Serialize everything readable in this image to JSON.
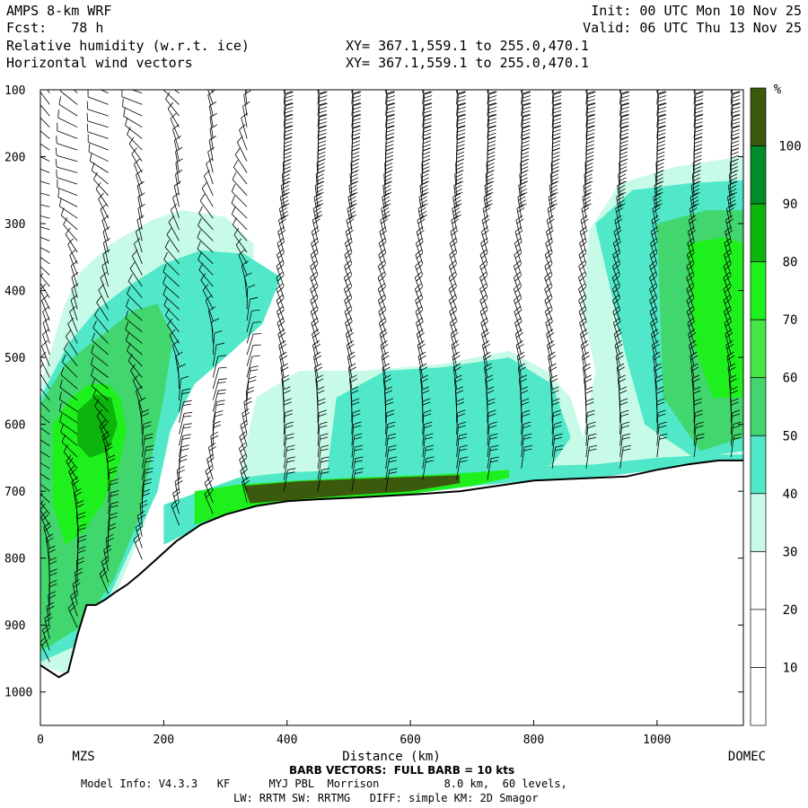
{
  "header": {
    "model": "AMPS 8-km WRF",
    "forecast": "Fcst:   78 h",
    "field1": "Relative humidity (w.r.t. ice)",
    "field2": "Horizontal wind vectors",
    "init": "Init: 00 UTC Mon 10 Nov 25",
    "valid": "Valid: 06 UTC Thu 13 Nov 25",
    "xy1": "XY= 367.1,559.1 to 255.0,470.1",
    "xy2": "XY= 367.1,559.1 to 255.0,470.1"
  },
  "footer": {
    "barb_note": "BARB VECTORS:  FULL BARB = 10 kts",
    "model_info": "Model Info: V4.3.3   KF      MYJ PBL  Morrison          8.0 km,  60 levels,",
    "physics": "LW: RRTM SW: RRTMG   DIFF: simple KM: 2D Smagor"
  },
  "colors": {
    "rh_30_40": "#c8fae8",
    "rh_40_50": "#50e8c8",
    "rh_50_60": "#42d66e",
    "rh_60_70": "#46e646",
    "rh_70_80": "#1ef01e",
    "rh_80_90": "#0cb40c",
    "rh_90_100": "#008c28",
    "rh_100_plus": "#3c5a0e",
    "terrain_band": "#7a3c12"
  },
  "chart_data": {
    "type": "heatmap",
    "title": "Relative humidity (w.r.t. ice)",
    "xlabel": "Distance (km)",
    "ylabel": "",
    "x_range": [
      0,
      1140
    ],
    "y_range_hpa": [
      100,
      1050
    ],
    "y_inverted": true,
    "x_ticks": [
      0,
      200,
      400,
      600,
      800,
      1000
    ],
    "y_ticks": [
      100,
      200,
      300,
      400,
      500,
      600,
      700,
      800,
      900,
      1000
    ],
    "endpoint_labels": {
      "left": "MZS",
      "right": "DOMEC"
    },
    "colorbar": {
      "unit": "%",
      "levels": [
        10,
        20,
        30,
        40,
        50,
        60,
        70,
        80,
        90,
        100
      ]
    },
    "terrain_surface_hpa": {
      "x": [
        0,
        30,
        45,
        60,
        75,
        90,
        105,
        120,
        140,
        160,
        190,
        220,
        260,
        300,
        350,
        400,
        450,
        500,
        560,
        620,
        680,
        740,
        800,
        850,
        900,
        950,
        1000,
        1050,
        1100,
        1140
      ],
      "p": [
        960,
        978,
        970,
        915,
        870,
        870,
        862,
        852,
        840,
        825,
        800,
        775,
        750,
        735,
        722,
        715,
        712,
        710,
        707,
        704,
        700,
        692,
        684,
        682,
        680,
        678,
        668,
        660,
        654,
        654
      ]
    },
    "rh_regions": [
      {
        "rh": 35,
        "points": [
          [
            0,
            540
          ],
          [
            40,
            420
          ],
          [
            65,
            372
          ],
          [
            115,
            330
          ],
          [
            180,
            295
          ],
          [
            230,
            280
          ],
          [
            300,
            290
          ],
          [
            345,
            330
          ],
          [
            350,
            420
          ],
          [
            310,
            470
          ],
          [
            260,
            520
          ],
          [
            220,
            580
          ],
          [
            200,
            660
          ],
          [
            165,
            760
          ],
          [
            120,
            860
          ],
          [
            85,
            905
          ],
          [
            45,
            975
          ],
          [
            0,
            960
          ]
        ]
      },
      {
        "rh": 35,
        "points": [
          [
            320,
            690
          ],
          [
            350,
            560
          ],
          [
            420,
            520
          ],
          [
            520,
            520
          ],
          [
            650,
            510
          ],
          [
            760,
            490
          ],
          [
            820,
            520
          ],
          [
            860,
            560
          ],
          [
            880,
            620
          ],
          [
            900,
            520
          ],
          [
            880,
            430
          ],
          [
            890,
            310
          ],
          [
            940,
            240
          ],
          [
            1030,
            215
          ],
          [
            1100,
            205
          ],
          [
            1140,
            200
          ],
          [
            1140,
            654
          ],
          [
            1000,
            668
          ],
          [
            800,
            684
          ],
          [
            600,
            704
          ],
          [
            450,
            712
          ],
          [
            320,
            735
          ]
        ]
      },
      {
        "rh": 45,
        "points": [
          [
            0,
            560
          ],
          [
            45,
            480
          ],
          [
            90,
            430
          ],
          [
            140,
            395
          ],
          [
            200,
            360
          ],
          [
            260,
            340
          ],
          [
            330,
            345
          ],
          [
            390,
            380
          ],
          [
            360,
            450
          ],
          [
            300,
            500
          ],
          [
            250,
            540
          ],
          [
            210,
            610
          ],
          [
            190,
            700
          ],
          [
            150,
            780
          ],
          [
            110,
            860
          ],
          [
            60,
            930
          ],
          [
            0,
            955
          ]
        ]
      },
      {
        "rh": 45,
        "points": [
          [
            480,
            560
          ],
          [
            560,
            520
          ],
          [
            650,
            515
          ],
          [
            760,
            500
          ],
          [
            830,
            540
          ],
          [
            860,
            620
          ],
          [
            830,
            660
          ],
          [
            700,
            690
          ],
          [
            560,
            705
          ],
          [
            460,
            710
          ]
        ]
      },
      {
        "rh": 45,
        "points": [
          [
            920,
            380
          ],
          [
            900,
            300
          ],
          [
            960,
            250
          ],
          [
            1050,
            240
          ],
          [
            1140,
            235
          ],
          [
            1140,
            640
          ],
          [
            1060,
            650
          ],
          [
            980,
            600
          ],
          [
            950,
            500
          ]
        ]
      },
      {
        "rh": 55,
        "points": [
          [
            0,
            570
          ],
          [
            40,
            510
          ],
          [
            80,
            480
          ],
          [
            110,
            460
          ],
          [
            150,
            430
          ],
          [
            190,
            420
          ],
          [
            215,
            470
          ],
          [
            200,
            560
          ],
          [
            180,
            650
          ],
          [
            160,
            740
          ],
          [
            120,
            830
          ],
          [
            70,
            900
          ],
          [
            0,
            940
          ]
        ]
      },
      {
        "rh": 55,
        "points": [
          [
            1000,
            300
          ],
          [
            1080,
            280
          ],
          [
            1140,
            280
          ],
          [
            1140,
            620
          ],
          [
            1070,
            640
          ],
          [
            1010,
            560
          ]
        ]
      },
      {
        "rh": 75,
        "points": [
          [
            20,
            600
          ],
          [
            50,
            560
          ],
          [
            80,
            540
          ],
          [
            110,
            540
          ],
          [
            130,
            560
          ],
          [
            140,
            610
          ],
          [
            125,
            670
          ],
          [
            100,
            720
          ],
          [
            70,
            760
          ],
          [
            40,
            780
          ],
          [
            20,
            720
          ]
        ]
      },
      {
        "rh": 75,
        "points": [
          [
            1050,
            330
          ],
          [
            1110,
            320
          ],
          [
            1140,
            330
          ],
          [
            1140,
            560
          ],
          [
            1090,
            560
          ],
          [
            1060,
            480
          ]
        ]
      },
      {
        "rh": 85,
        "points": [
          [
            60,
            580
          ],
          [
            90,
            555
          ],
          [
            115,
            560
          ],
          [
            125,
            600
          ],
          [
            110,
            640
          ],
          [
            80,
            650
          ],
          [
            60,
            630
          ]
        ]
      },
      {
        "rh": 45,
        "points": [
          [
            200,
            720
          ],
          [
            260,
            700
          ],
          [
            320,
            680
          ],
          [
            400,
            672
          ],
          [
            500,
            668
          ],
          [
            620,
            664
          ],
          [
            720,
            660
          ],
          [
            820,
            662
          ],
          [
            900,
            660
          ],
          [
            1000,
            650
          ],
          [
            1100,
            645
          ],
          [
            1140,
            645
          ],
          [
            1140,
            654
          ],
          [
            1000,
            668
          ],
          [
            900,
            680
          ],
          [
            800,
            684
          ],
          [
            700,
            692
          ],
          [
            600,
            704
          ],
          [
            500,
            710
          ],
          [
            400,
            715
          ],
          [
            300,
            735
          ],
          [
            200,
            780
          ]
        ]
      },
      {
        "rh": 75,
        "points": [
          [
            250,
            700
          ],
          [
            320,
            690
          ],
          [
            400,
            685
          ],
          [
            500,
            680
          ],
          [
            620,
            676
          ],
          [
            700,
            672
          ],
          [
            760,
            668
          ],
          [
            760,
            680
          ],
          [
            700,
            692
          ],
          [
            600,
            704
          ],
          [
            500,
            710
          ],
          [
            400,
            715
          ],
          [
            300,
            735
          ],
          [
            250,
            750
          ]
        ]
      },
      {
        "rh": 105,
        "points": [
          [
            330,
            692
          ],
          [
            420,
            685
          ],
          [
            500,
            682
          ],
          [
            620,
            678
          ],
          [
            680,
            676
          ],
          [
            680,
            688
          ],
          [
            600,
            700
          ],
          [
            500,
            706
          ],
          [
            420,
            712
          ],
          [
            340,
            718
          ]
        ]
      }
    ],
    "barb_columns_km": [
      15,
      60,
      110,
      165,
      225,
      280,
      335,
      395,
      450,
      505,
      560,
      620,
      675,
      725,
      780,
      830,
      885,
      940,
      1000,
      1060,
      1120
    ]
  }
}
